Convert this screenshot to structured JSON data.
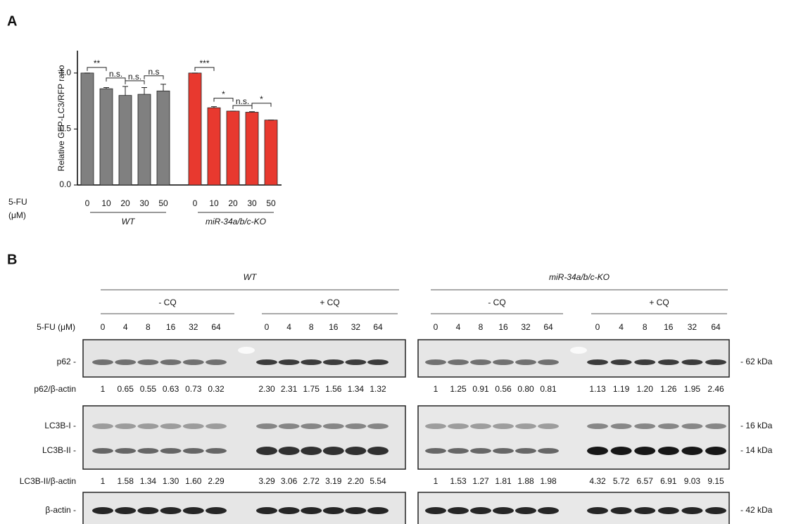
{
  "panel_labels": [
    "A",
    "B"
  ],
  "chart_data": {
    "type": "bar",
    "y_label": "Relative GFP-LC3/RFP ratio",
    "x_label_lines": [
      "5-FU",
      "(μM)"
    ],
    "ylim": [
      0,
      1.2
    ],
    "yticks": [
      {
        "value": 0,
        "label": "0.0"
      },
      {
        "value": 0.5,
        "label": "0.5"
      },
      {
        "value": 1,
        "label": "1.0"
      }
    ],
    "groups": [
      {
        "name": "WT",
        "color": "#808080",
        "categories": [
          "0",
          "10",
          "20",
          "30",
          "50"
        ],
        "values": [
          1.0,
          0.86,
          0.8,
          0.81,
          0.84
        ],
        "errors": [
          0,
          0.01,
          0.08,
          0.06,
          0.06
        ],
        "significance": [
          "**",
          "n.s.",
          "n.s.",
          "n.s"
        ]
      },
      {
        "name": "miR-34a/b/c-KO",
        "color": "#e8392f",
        "categories": [
          "0",
          "10",
          "20",
          "30",
          "50"
        ],
        "values": [
          1.0,
          0.69,
          0.66,
          0.65,
          0.58
        ],
        "errors": [
          0,
          0.01,
          0,
          0.005,
          0
        ],
        "significance": [
          "***",
          "*",
          "n.s.",
          "*"
        ]
      }
    ]
  },
  "blot": {
    "treatment_label": "5-FU (μM)",
    "genotypes": [
      {
        "name": "WT",
        "conditions": [
          {
            "name": "- CQ",
            "doses": [
              "0",
              "4",
              "8",
              "16",
              "32",
              "64"
            ]
          },
          {
            "name": "+ CQ",
            "doses": [
              "0",
              "4",
              "8",
              "16",
              "32",
              "64"
            ]
          }
        ]
      },
      {
        "name": "miR-34a/b/c-KO",
        "conditions": [
          {
            "name": "- CQ",
            "doses": [
              "0",
              "4",
              "8",
              "16",
              "32",
              "64"
            ]
          },
          {
            "name": "+ CQ",
            "doses": [
              "0",
              "4",
              "8",
              "16",
              "32",
              "64"
            ]
          }
        ]
      }
    ],
    "rows": [
      {
        "label": "p62 -",
        "marker": "- 62 kDa"
      },
      {
        "label": "LC3B-I -",
        "marker": "- 16 kDa"
      },
      {
        "label": "LC3B-II -",
        "marker": "- 14 kDa"
      },
      {
        "label": "β-actin -",
        "marker": "- 42 kDa"
      }
    ],
    "quantifications": [
      {
        "label": "p62/β-actin",
        "values": [
          [
            "1",
            "0.65",
            "0.55",
            "0.63",
            "0.73",
            "0.32",
            "2.30",
            "2.31",
            "1.75",
            "1.56",
            "1.34",
            "1.32"
          ],
          [
            "1",
            "1.25",
            "0.91",
            "0.56",
            "0.80",
            "0.81",
            "1.13",
            "1.19",
            "1.20",
            "1.26",
            "1.95",
            "2.46"
          ]
        ]
      },
      {
        "label": "LC3B-II/β-actin",
        "values": [
          [
            "1",
            "1.58",
            "1.34",
            "1.30",
            "1.60",
            "2.29",
            "3.29",
            "3.06",
            "2.72",
            "3.19",
            "2.20",
            "5.54"
          ],
          [
            "1",
            "1.53",
            "1.27",
            "1.81",
            "1.88",
            "1.98",
            "4.32",
            "5.72",
            "6.57",
            "6.91",
            "9.03",
            "9.15"
          ]
        ]
      }
    ]
  }
}
